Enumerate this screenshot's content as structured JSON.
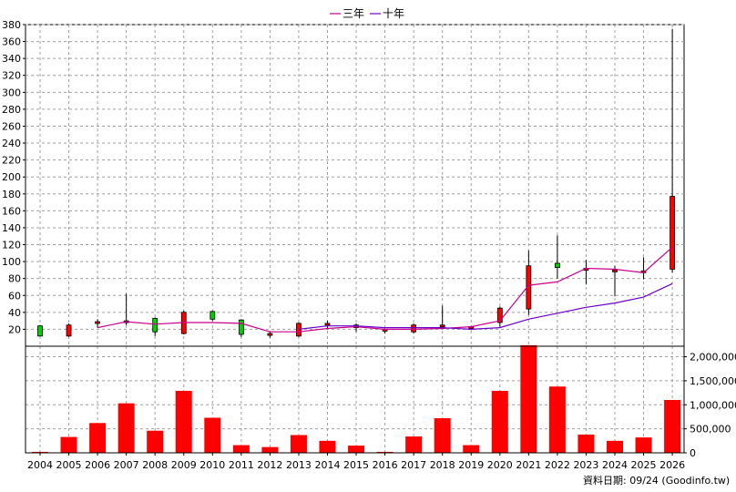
{
  "chart_data": {
    "type": "candlestick+line+bar",
    "legend": [
      {
        "name": "三年",
        "color": "#c8008a"
      },
      {
        "name": "十年",
        "color": "#6a00c8"
      }
    ],
    "years": [
      "2004",
      "2005",
      "2006",
      "2007",
      "2008",
      "2009",
      "2010",
      "2011",
      "2012",
      "2013",
      "2014",
      "2015",
      "2016",
      "2017",
      "2018",
      "2019",
      "2020",
      "2021",
      "2022",
      "2023",
      "2024",
      "2025",
      "2026"
    ],
    "price_axis": {
      "ylim": [
        0,
        380
      ],
      "ticks": [
        20,
        40,
        60,
        80,
        100,
        120,
        140,
        160,
        180,
        200,
        220,
        240,
        260,
        280,
        300,
        320,
        340,
        360,
        380
      ],
      "grid": true
    },
    "volume_axis": {
      "ylim": [
        0,
        2200000
      ],
      "ticks": [
        0,
        500000,
        1000000,
        1500000,
        2000000
      ],
      "tick_labels": [
        "0",
        "500,000",
        "1,000,000",
        "1,500,000",
        "2,000,000"
      ]
    },
    "candles": [
      {
        "open": 12,
        "high": 25,
        "low": 12,
        "close": 24,
        "color": "green"
      },
      {
        "open": 25,
        "high": 27,
        "low": 11,
        "close": 12,
        "color": "red"
      },
      {
        "open": 28,
        "high": 32,
        "low": 22,
        "close": 29,
        "color": "red"
      },
      {
        "open": 29,
        "high": 62,
        "low": 25,
        "close": 30,
        "color": "red"
      },
      {
        "open": 17,
        "high": 34,
        "low": 12,
        "close": 33,
        "color": "green"
      },
      {
        "open": 40,
        "high": 42,
        "low": 14,
        "close": 15,
        "color": "red"
      },
      {
        "open": 32,
        "high": 42,
        "low": 30,
        "close": 41,
        "color": "green"
      },
      {
        "open": 14,
        "high": 32,
        "low": 11,
        "close": 31,
        "color": "green"
      },
      {
        "open": 15,
        "high": 17,
        "low": 10,
        "close": 15,
        "color": "red"
      },
      {
        "open": 27,
        "high": 28,
        "low": 11,
        "close": 12,
        "color": "red"
      },
      {
        "open": 27,
        "high": 30,
        "low": 20,
        "close": 26,
        "color": "red"
      },
      {
        "open": 22,
        "high": 27,
        "low": 17,
        "close": 25,
        "color": "green"
      },
      {
        "open": 20,
        "high": 21,
        "low": 15,
        "close": 18,
        "color": "red"
      },
      {
        "open": 25,
        "high": 27,
        "low": 15,
        "close": 17,
        "color": "red"
      },
      {
        "open": 24,
        "high": 48,
        "low": 22,
        "close": 25,
        "color": "red"
      },
      {
        "open": 22,
        "high": 24,
        "low": 19,
        "close": 23,
        "color": "red"
      },
      {
        "open": 45,
        "high": 47,
        "low": 23,
        "close": 28,
        "color": "red"
      },
      {
        "open": 95,
        "high": 113,
        "low": 37,
        "close": 44,
        "color": "red"
      },
      {
        "open": 93,
        "high": 131,
        "low": 80,
        "close": 98,
        "color": "green"
      },
      {
        "open": 92,
        "high": 102,
        "low": 73,
        "close": 92,
        "color": "red"
      },
      {
        "open": 90,
        "high": 95,
        "low": 59,
        "close": 88,
        "color": "red"
      },
      {
        "open": 89,
        "high": 105,
        "low": 79,
        "close": 88,
        "color": "red"
      },
      {
        "open": 177,
        "high": 375,
        "low": 87,
        "close": 91,
        "color": "red"
      }
    ],
    "ma3": [
      null,
      null,
      22,
      29,
      26,
      28,
      28,
      27,
      17,
      17,
      21,
      23,
      20,
      20,
      21,
      23,
      30,
      72,
      76,
      92,
      91,
      87,
      117
    ],
    "ma10": [
      null,
      null,
      null,
      null,
      null,
      null,
      null,
      null,
      null,
      20,
      24,
      24,
      22,
      22,
      22,
      20,
      22,
      32,
      39,
      46,
      51,
      58,
      74
    ],
    "volume": [
      20000,
      330000,
      620000,
      1030000,
      460000,
      1290000,
      730000,
      160000,
      120000,
      370000,
      250000,
      150000,
      20000,
      340000,
      720000,
      160000,
      1290000,
      2240000,
      1380000,
      380000,
      250000,
      320000,
      1100000
    ],
    "credit": "資料日期: 09/24  (Goodinfo.tw)"
  }
}
